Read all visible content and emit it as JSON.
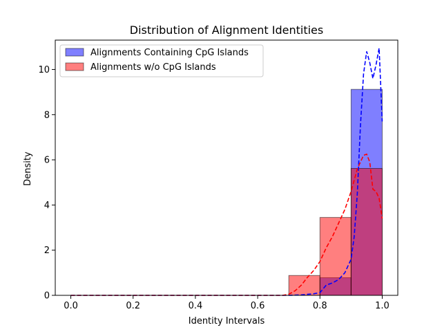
{
  "chart_data": {
    "type": "histogram",
    "title": "Distribution of Alignment Identities",
    "xlabel": "Identity Intervals",
    "ylabel": "Density",
    "xlim": [
      -0.05,
      1.05
    ],
    "ylim": [
      0,
      11.3
    ],
    "xticks": [
      "0.0",
      "0.2",
      "0.4",
      "0.6",
      "0.8",
      "1.0"
    ],
    "xtick_values": [
      0.0,
      0.2,
      0.4,
      0.6,
      0.8,
      1.0
    ],
    "yticks": [
      "0",
      "2",
      "4",
      "6",
      "8",
      "10"
    ],
    "ytick_values": [
      0,
      2,
      4,
      6,
      8,
      10
    ],
    "legend_position": "upper-left",
    "grid": false,
    "series": [
      {
        "name": "Alignments Containing CpG Islands",
        "color": "#0000ff",
        "bins": [
          {
            "x0": 0.8,
            "x1": 0.9,
            "value": 0.78
          },
          {
            "x0": 0.9,
            "x1": 1.0,
            "value": 9.12
          }
        ],
        "kde": [
          [
            0.0,
            0
          ],
          [
            0.7,
            0
          ],
          [
            0.74,
            0.02
          ],
          [
            0.78,
            0.07
          ],
          [
            0.8,
            0.12
          ],
          [
            0.82,
            0.45
          ],
          [
            0.84,
            0.55
          ],
          [
            0.86,
            0.7
          ],
          [
            0.88,
            1.0
          ],
          [
            0.9,
            1.6
          ],
          [
            0.91,
            2.6
          ],
          [
            0.92,
            4.5
          ],
          [
            0.93,
            7.5
          ],
          [
            0.94,
            9.8
          ],
          [
            0.95,
            10.8
          ],
          [
            0.96,
            10.3
          ],
          [
            0.97,
            9.6
          ],
          [
            0.98,
            10.2
          ],
          [
            0.99,
            10.95
          ],
          [
            1.0,
            7.7
          ]
        ]
      },
      {
        "name": "Alignments w/o CpG Islands",
        "color": "#ff0000",
        "bins": [
          {
            "x0": 0.7,
            "x1": 0.8,
            "value": 0.88
          },
          {
            "x0": 0.8,
            "x1": 0.9,
            "value": 3.45
          },
          {
            "x0": 0.9,
            "x1": 1.0,
            "value": 5.62
          }
        ],
        "kde": [
          [
            0.0,
            0
          ],
          [
            0.68,
            0
          ],
          [
            0.7,
            0.05
          ],
          [
            0.72,
            0.2
          ],
          [
            0.74,
            0.45
          ],
          [
            0.76,
            0.8
          ],
          [
            0.78,
            1.1
          ],
          [
            0.8,
            1.5
          ],
          [
            0.82,
            2.1
          ],
          [
            0.84,
            2.6
          ],
          [
            0.86,
            3.2
          ],
          [
            0.88,
            3.8
          ],
          [
            0.9,
            4.6
          ],
          [
            0.92,
            5.6
          ],
          [
            0.94,
            6.2
          ],
          [
            0.95,
            6.25
          ],
          [
            0.96,
            5.9
          ],
          [
            0.97,
            4.7
          ],
          [
            0.98,
            4.6
          ],
          [
            0.99,
            4.3
          ],
          [
            1.0,
            3.4
          ]
        ]
      }
    ]
  }
}
